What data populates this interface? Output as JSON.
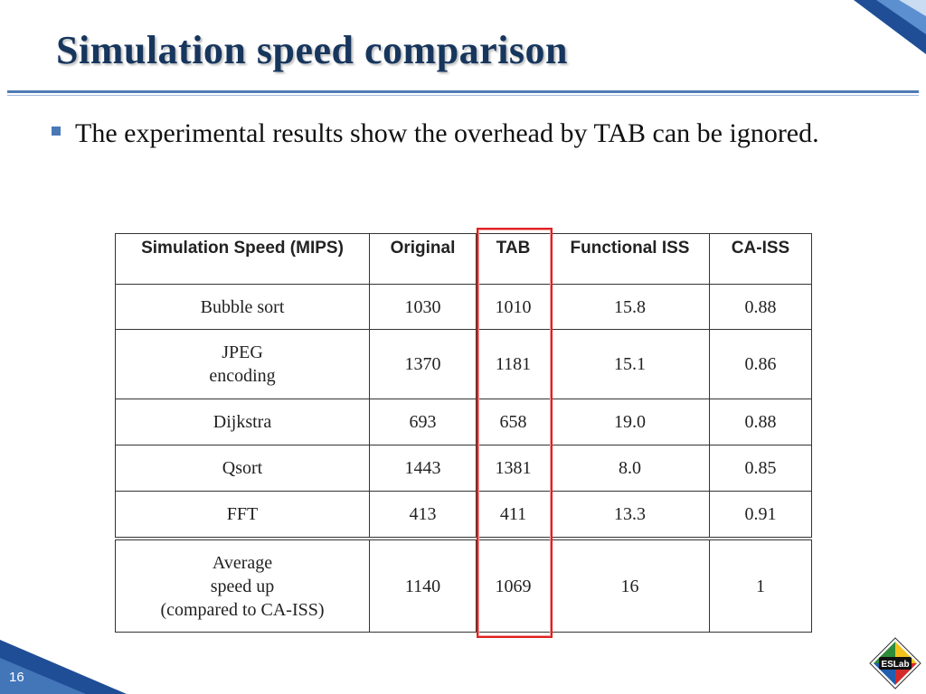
{
  "slide": {
    "title": "Simulation speed comparison",
    "bullet": "The experimental results show the overhead by TAB can be ignored.",
    "page_number": "16",
    "logo_text": "ESLab"
  },
  "table": {
    "headers": [
      "Simulation Speed (MIPS)",
      "Original",
      "TAB",
      "Functional ISS",
      "CA-ISS"
    ],
    "rows": [
      [
        "Bubble sort",
        "1030",
        "1010",
        "15.8",
        "0.88"
      ],
      [
        "JPEG\nencoding",
        "1370",
        "1181",
        "15.1",
        "0.86"
      ],
      [
        "Dijkstra",
        "693",
        "658",
        "19.0",
        "0.88"
      ],
      [
        "Qsort",
        "1443",
        "1381",
        "8.0",
        "0.85"
      ],
      [
        "FFT",
        "413",
        "411",
        "13.3",
        "0.91"
      ]
    ],
    "average": [
      "Average\nspeed up\n(compared to CA-ISS)",
      "1140",
      "1069",
      "16",
      "1"
    ]
  },
  "colors": {
    "title": "#17365d",
    "accent": "#4a78b6",
    "highlight": "#e02020"
  }
}
